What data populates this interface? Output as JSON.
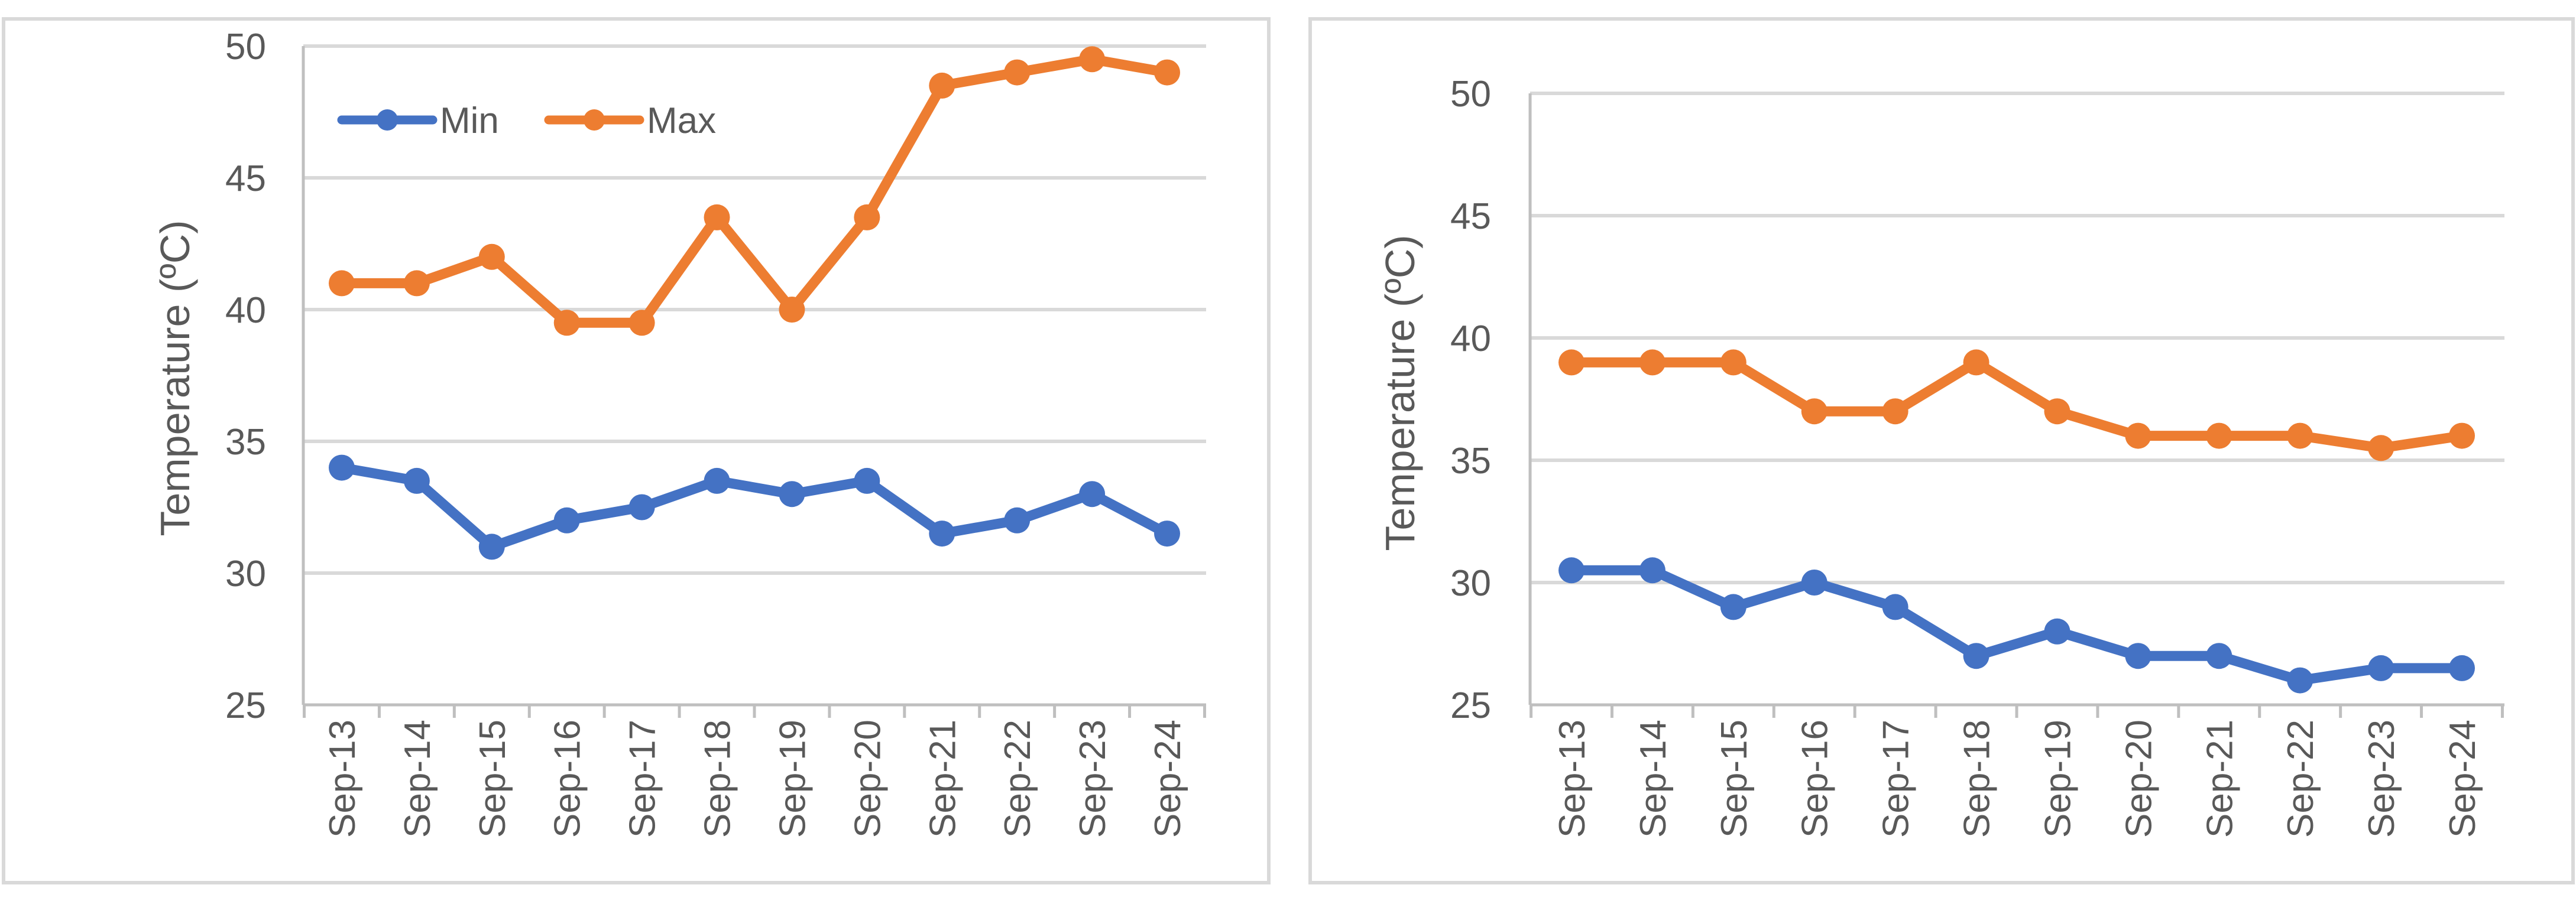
{
  "colors": {
    "min": "#4472c4",
    "max": "#ed7d31",
    "grid": "#d9d9d9",
    "text": "#595959"
  },
  "chart_data": [
    {
      "type": "line",
      "title": "",
      "xlabel": "",
      "ylabel": "Temperature (ºC)",
      "ylim": [
        25,
        50
      ],
      "yticks": [
        25,
        30,
        35,
        40,
        45,
        50
      ],
      "legend": "top-left",
      "categories": [
        "Sep-13",
        "Sep-14",
        "Sep-15",
        "Sep-16",
        "Sep-17",
        "Sep-18",
        "Sep-19",
        "Sep-20",
        "Sep-21",
        "Sep-22",
        "Sep-23",
        "Sep-24"
      ],
      "series": [
        {
          "name": "Min",
          "color": "#4472c4",
          "values": [
            34,
            33.5,
            31,
            32,
            32.5,
            33.5,
            33,
            33.5,
            31.5,
            32,
            33,
            31.5
          ]
        },
        {
          "name": "Max",
          "color": "#ed7d31",
          "values": [
            41,
            41,
            42,
            39.5,
            39.5,
            43.5,
            40,
            43.5,
            48.5,
            49,
            49.5,
            49
          ]
        }
      ]
    },
    {
      "type": "line",
      "title": "",
      "xlabel": "",
      "ylabel": "Temperature (ºC)",
      "ylim": [
        25,
        50
      ],
      "yticks": [
        25,
        30,
        35,
        40,
        45,
        50
      ],
      "legend": "none",
      "categories": [
        "Sep-13",
        "Sep-14",
        "Sep-15",
        "Sep-16",
        "Sep-17",
        "Sep-18",
        "Sep-19",
        "Sep-20",
        "Sep-21",
        "Sep-22",
        "Sep-23",
        "Sep-24"
      ],
      "series": [
        {
          "name": "Min",
          "color": "#4472c4",
          "values": [
            30.5,
            30.5,
            29,
            30,
            29,
            27,
            28,
            27,
            27,
            26,
            26.5,
            26.5
          ]
        },
        {
          "name": "Max",
          "color": "#ed7d31",
          "values": [
            39,
            39,
            39,
            37,
            37,
            39,
            37,
            36,
            36,
            36,
            35.5,
            36
          ]
        }
      ]
    }
  ]
}
